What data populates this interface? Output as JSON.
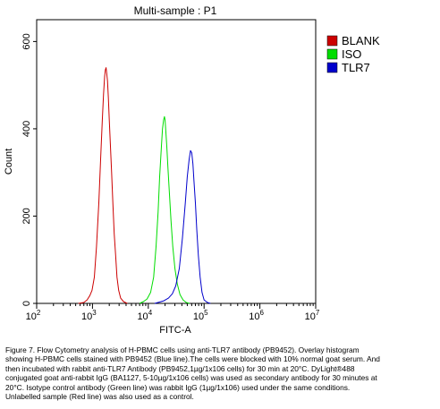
{
  "chart_data": {
    "type": "line",
    "title": "Multi-sample : P1",
    "xlabel": "FITC-A",
    "ylabel": "Count",
    "x_scale": "log",
    "xlim": [
      100,
      10000000
    ],
    "ylim": [
      0,
      650
    ],
    "x_tick_labels": [
      {
        "base": "10",
        "exp": "2",
        "value": 100
      },
      {
        "base": "10",
        "exp": "3",
        "value": 1000
      },
      {
        "base": "10",
        "exp": "4",
        "value": 10000
      },
      {
        "base": "10",
        "exp": "5",
        "value": 100000
      },
      {
        "base": "10",
        "exp": "6",
        "value": 1000000
      },
      {
        "base": "10",
        "exp": "7",
        "value": 10000000
      }
    ],
    "y_ticks": [
      0,
      200,
      400,
      600
    ],
    "legend_position": "top-right",
    "series": [
      {
        "name": "BLANK",
        "color": "#cc0000",
        "points": [
          [
            560,
            0
          ],
          [
            700,
            2
          ],
          [
            800,
            8
          ],
          [
            900,
            18
          ],
          [
            980,
            30
          ],
          [
            1080,
            60
          ],
          [
            1180,
            130
          ],
          [
            1300,
            230
          ],
          [
            1400,
            330
          ],
          [
            1500,
            420
          ],
          [
            1580,
            480
          ],
          [
            1650,
            520
          ],
          [
            1700,
            535
          ],
          [
            1750,
            540
          ],
          [
            1800,
            528
          ],
          [
            1860,
            510
          ],
          [
            1930,
            470
          ],
          [
            2000,
            420
          ],
          [
            2100,
            360
          ],
          [
            2200,
            300
          ],
          [
            2320,
            230
          ],
          [
            2450,
            160
          ],
          [
            2600,
            110
          ],
          [
            2750,
            60
          ],
          [
            2950,
            30
          ],
          [
            3200,
            12
          ],
          [
            3600,
            4
          ],
          [
            4200,
            0
          ]
        ]
      },
      {
        "name": "ISO",
        "color": "#00dd00",
        "points": [
          [
            7000,
            0
          ],
          [
            8200,
            4
          ],
          [
            9500,
            10
          ],
          [
            11000,
            25
          ],
          [
            12500,
            60
          ],
          [
            13800,
            130
          ],
          [
            15000,
            210
          ],
          [
            16000,
            290
          ],
          [
            17200,
            360
          ],
          [
            18000,
            400
          ],
          [
            18800,
            420
          ],
          [
            19500,
            428
          ],
          [
            20000,
            420
          ],
          [
            20600,
            395
          ],
          [
            21500,
            360
          ],
          [
            22500,
            310
          ],
          [
            24000,
            250
          ],
          [
            25500,
            190
          ],
          [
            27500,
            130
          ],
          [
            30000,
            80
          ],
          [
            33000,
            45
          ],
          [
            37000,
            20
          ],
          [
            42000,
            8
          ],
          [
            48000,
            2
          ],
          [
            55000,
            0
          ]
        ]
      },
      {
        "name": "TLR7",
        "color": "#0000cc",
        "points": [
          [
            13000,
            0
          ],
          [
            16000,
            3
          ],
          [
            19000,
            6
          ],
          [
            23000,
            12
          ],
          [
            27000,
            22
          ],
          [
            31000,
            40
          ],
          [
            36000,
            80
          ],
          [
            41000,
            150
          ],
          [
            46000,
            230
          ],
          [
            50000,
            290
          ],
          [
            54000,
            330
          ],
          [
            57000,
            350
          ],
          [
            60000,
            345
          ],
          [
            63000,
            320
          ],
          [
            66000,
            280
          ],
          [
            70000,
            230
          ],
          [
            74000,
            170
          ],
          [
            79000,
            110
          ],
          [
            85000,
            60
          ],
          [
            92000,
            25
          ],
          [
            100000,
            8
          ],
          [
            115000,
            2
          ],
          [
            130000,
            0
          ]
        ]
      }
    ]
  },
  "caption_lines": [
    "Figure 7. Flow Cytometry analysis of H-PBMC cells using anti-TLR7 antibody (PB9452). Overlay histogram",
    "showing H-PBMC cells stained with PB9452 (Blue line).The cells were blocked with 10% normal goat serum. And",
    "then incubated with rabbit anti-TLR7 Antibody (PB9452,1µg/1x106 cells) for 30 min at 20°C. DyLight®488",
    "conjugated goat anti-rabbit IgG (BA1127, 5-10µg/1x106 cells) was used as secondary antibody for 30 minutes at",
    "20°C. Isotype control antibody (Green line) was rabbit IgG (1µg/1x106) used under the same conditions.",
    "Unlabelled sample (Red line) was also used as a control."
  ]
}
